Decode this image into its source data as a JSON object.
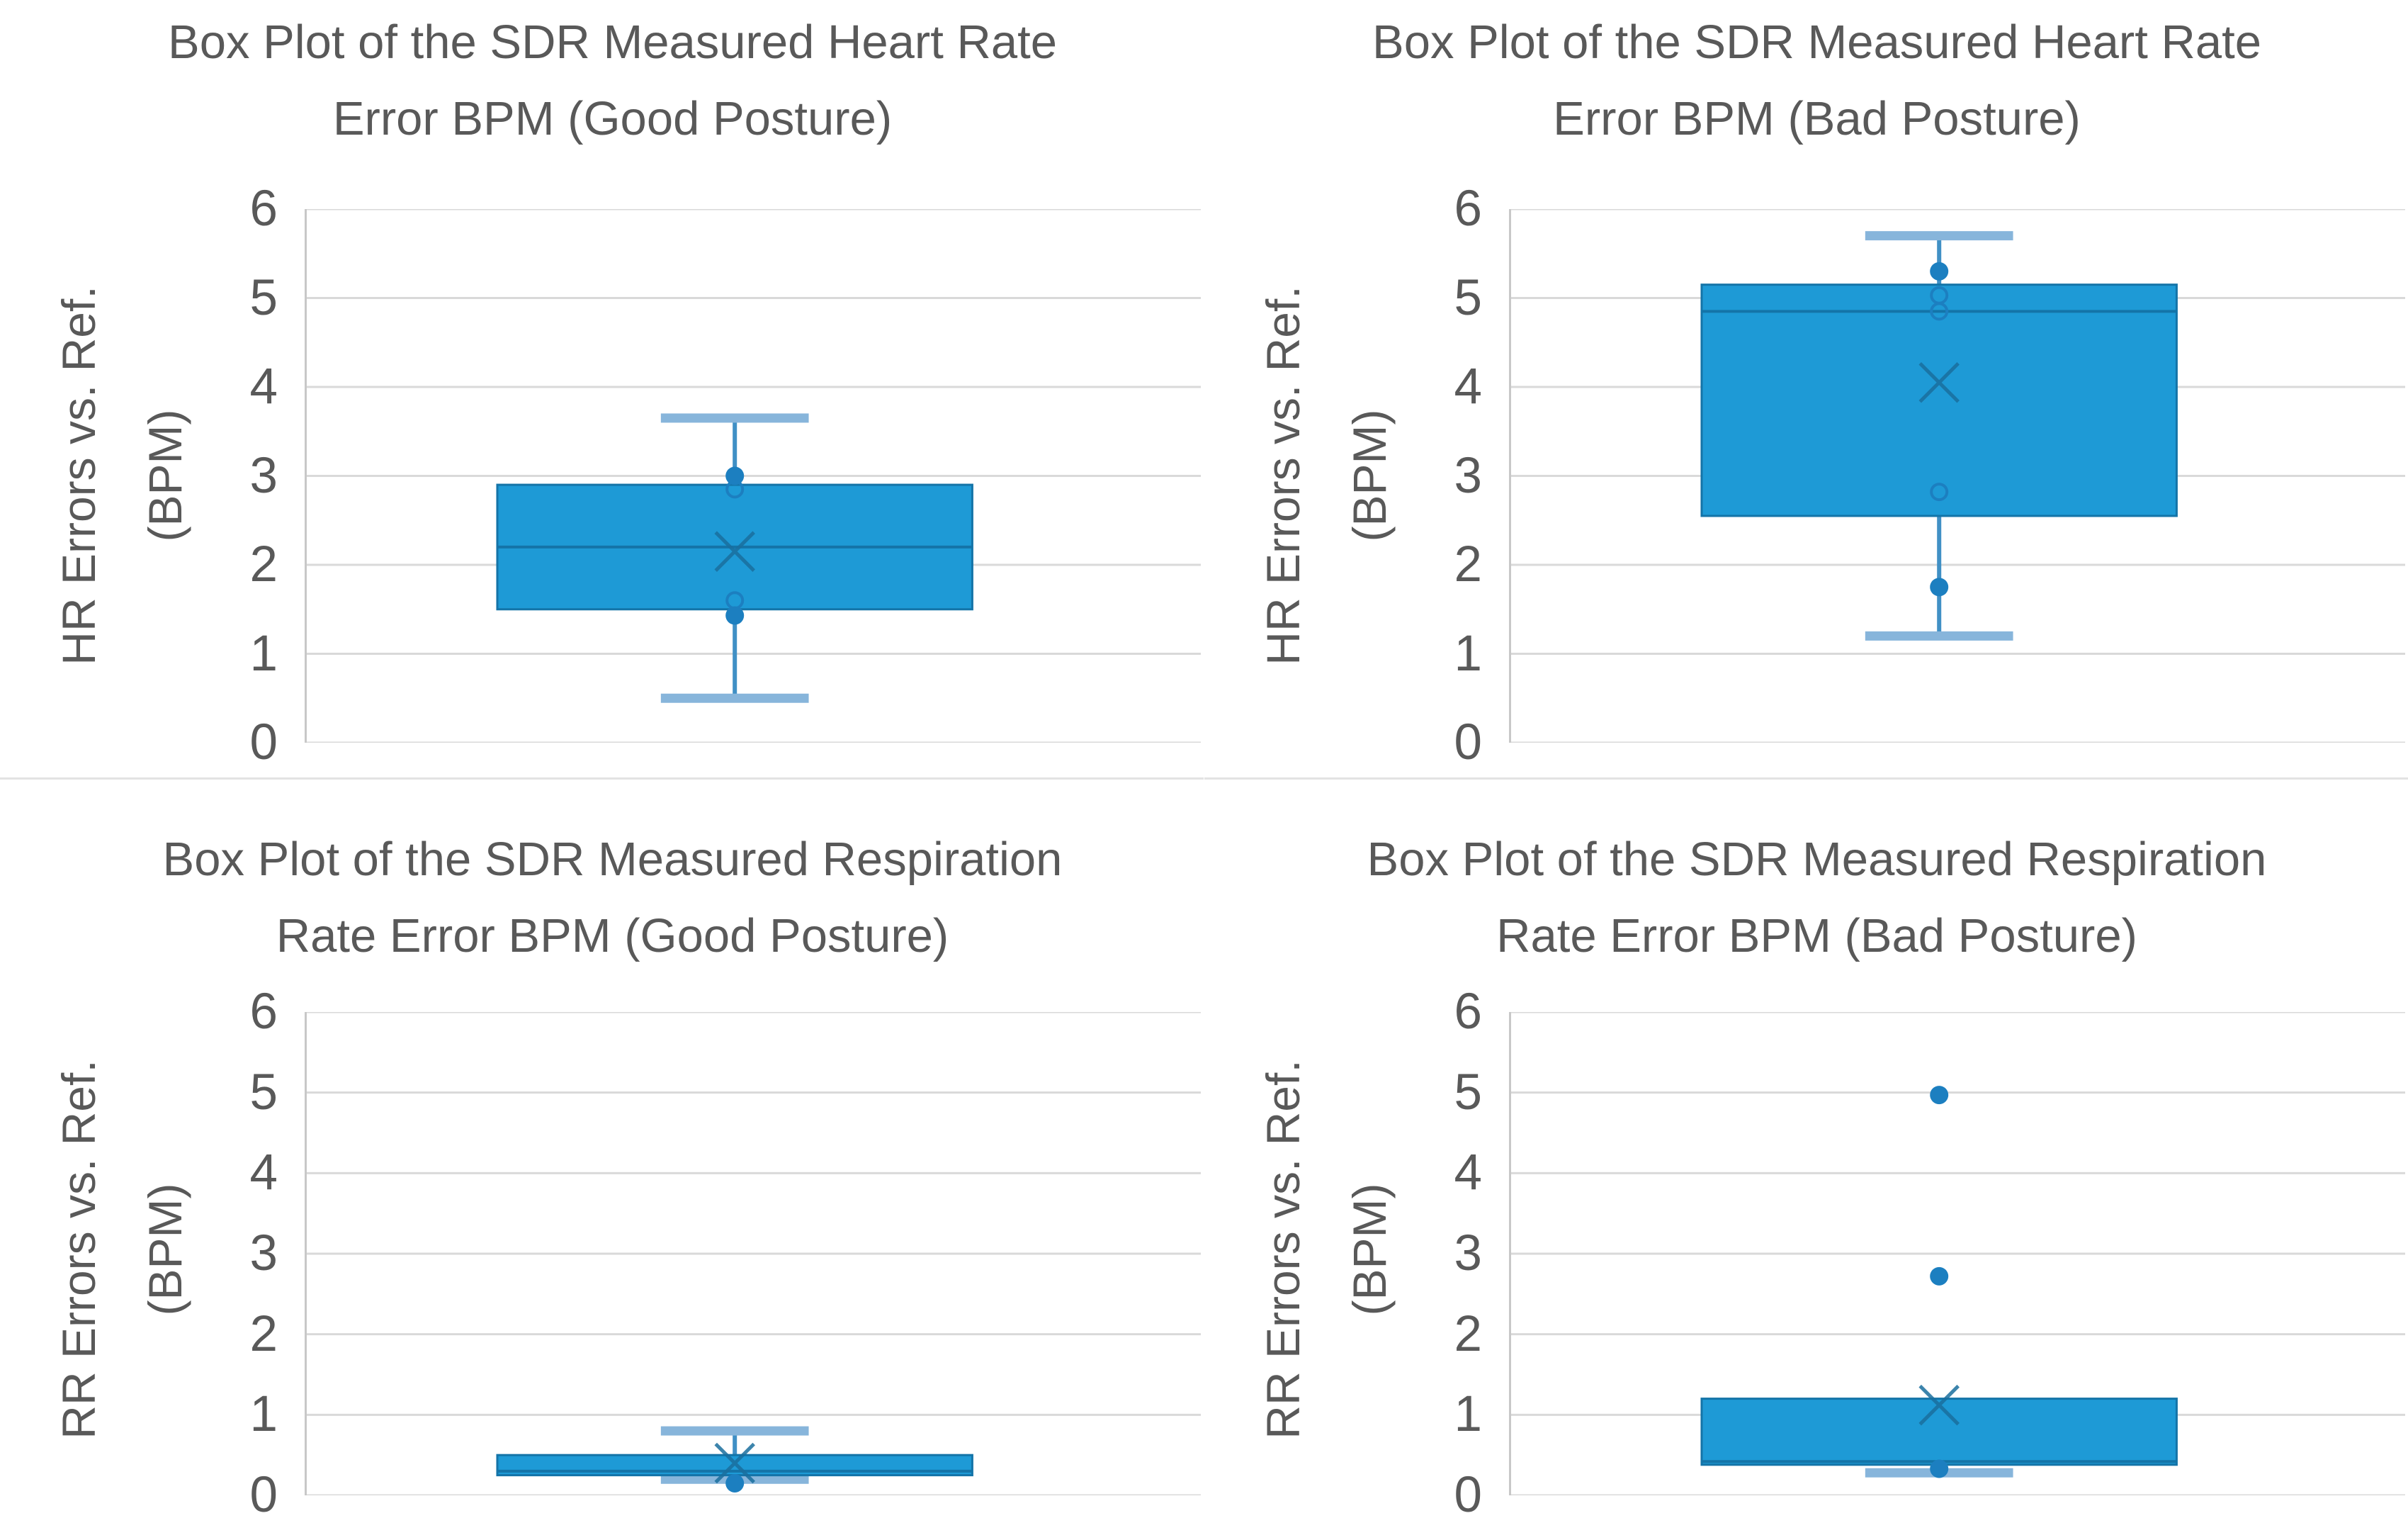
{
  "figure": {
    "description": "Four box plots of SDR measured heart-rate and respiration-rate errors vs. reference, for good and bad posture",
    "rows": 2,
    "cols": 2
  },
  "colors": {
    "background": "#FFFFFF",
    "text": "#595959",
    "gridline": "#D9D9D9",
    "axis_line": "#C8C8C8",
    "divider": "#E3E3E3",
    "box_fill": "#1E9AD6",
    "box_stroke": "#1474A8",
    "median_line": "#1474A8",
    "mean_marker": "#1A6E9E",
    "whisker_line": "#4090C5",
    "whisker_cap": "#87B5DB",
    "point": "#1C7FC0"
  },
  "chart_data": [
    {
      "type": "box",
      "title_line1": "Box Plot of the SDR Measured Heart Rate",
      "title_line2": "Error BPM (Good Posture)",
      "y_axis_label_line1": "HR Errors vs. Ref.",
      "y_axis_label_line2": "(BPM)",
      "ylim": [
        0,
        6
      ],
      "y_ticks": [
        6,
        5,
        4,
        3,
        2,
        1,
        0
      ],
      "grid": true,
      "box": {
        "whisker_low": 0.5,
        "q1": 1.5,
        "median": 2.2,
        "mean": 2.15,
        "q3": 2.9,
        "whisker_high": 3.65
      },
      "points": [
        {
          "value": 3.0,
          "style": "filled"
        },
        {
          "value": 2.85,
          "style": "open"
        },
        {
          "value": 1.6,
          "style": "open"
        },
        {
          "value": 1.43,
          "style": "filled"
        }
      ]
    },
    {
      "type": "box",
      "title_line1": "Box Plot of the SDR Measured Heart Rate",
      "title_line2": "Error BPM (Bad Posture)",
      "y_axis_label_line1": "HR Errors vs. Ref.",
      "y_axis_label_line2": "(BPM)",
      "ylim": [
        0,
        6
      ],
      "y_ticks": [
        6,
        5,
        4,
        3,
        2,
        1,
        0
      ],
      "grid": true,
      "box": {
        "whisker_low": 1.2,
        "q1": 2.55,
        "median": 4.85,
        "mean": 4.05,
        "q3": 5.15,
        "whisker_high": 5.7
      },
      "points": [
        {
          "value": 5.3,
          "style": "filled"
        },
        {
          "value": 5.03,
          "style": "open"
        },
        {
          "value": 4.85,
          "style": "open"
        },
        {
          "value": 2.82,
          "style": "open"
        },
        {
          "value": 1.75,
          "style": "filled"
        }
      ]
    },
    {
      "type": "box",
      "title_line1": "Box Plot of the SDR Measured Respiration",
      "title_line2": "Rate Error BPM (Good Posture)",
      "y_axis_label_line1": "RR Errors vs. Ref.",
      "y_axis_label_line2": "(BPM)",
      "ylim": [
        0,
        6
      ],
      "y_ticks": [
        6,
        5,
        4,
        3,
        2,
        1,
        0
      ],
      "grid": true,
      "box": {
        "whisker_low": 0.2,
        "q1": 0.25,
        "median": 0.3,
        "mean": 0.4,
        "q3": 0.5,
        "whisker_high": 0.8
      },
      "points": [
        {
          "value": 0.15,
          "style": "filled"
        }
      ]
    },
    {
      "type": "box",
      "title_line1": "Box Plot of the SDR Measured Respiration",
      "title_line2": "Rate Error BPM (Bad Posture)",
      "y_axis_label_line1": "RR Errors vs. Ref.",
      "y_axis_label_line2": "(BPM)",
      "ylim": [
        0,
        6
      ],
      "y_ticks": [
        6,
        5,
        4,
        3,
        2,
        1,
        0
      ],
      "grid": true,
      "box": {
        "whisker_low": 0.28,
        "q1": 0.38,
        "median": 0.42,
        "mean": 1.12,
        "q3": 1.2,
        "whisker_high": 1.2
      },
      "points": [
        {
          "value": 4.97,
          "style": "filled"
        },
        {
          "value": 2.72,
          "style": "filled"
        },
        {
          "value": 0.33,
          "style": "filled"
        }
      ]
    }
  ]
}
